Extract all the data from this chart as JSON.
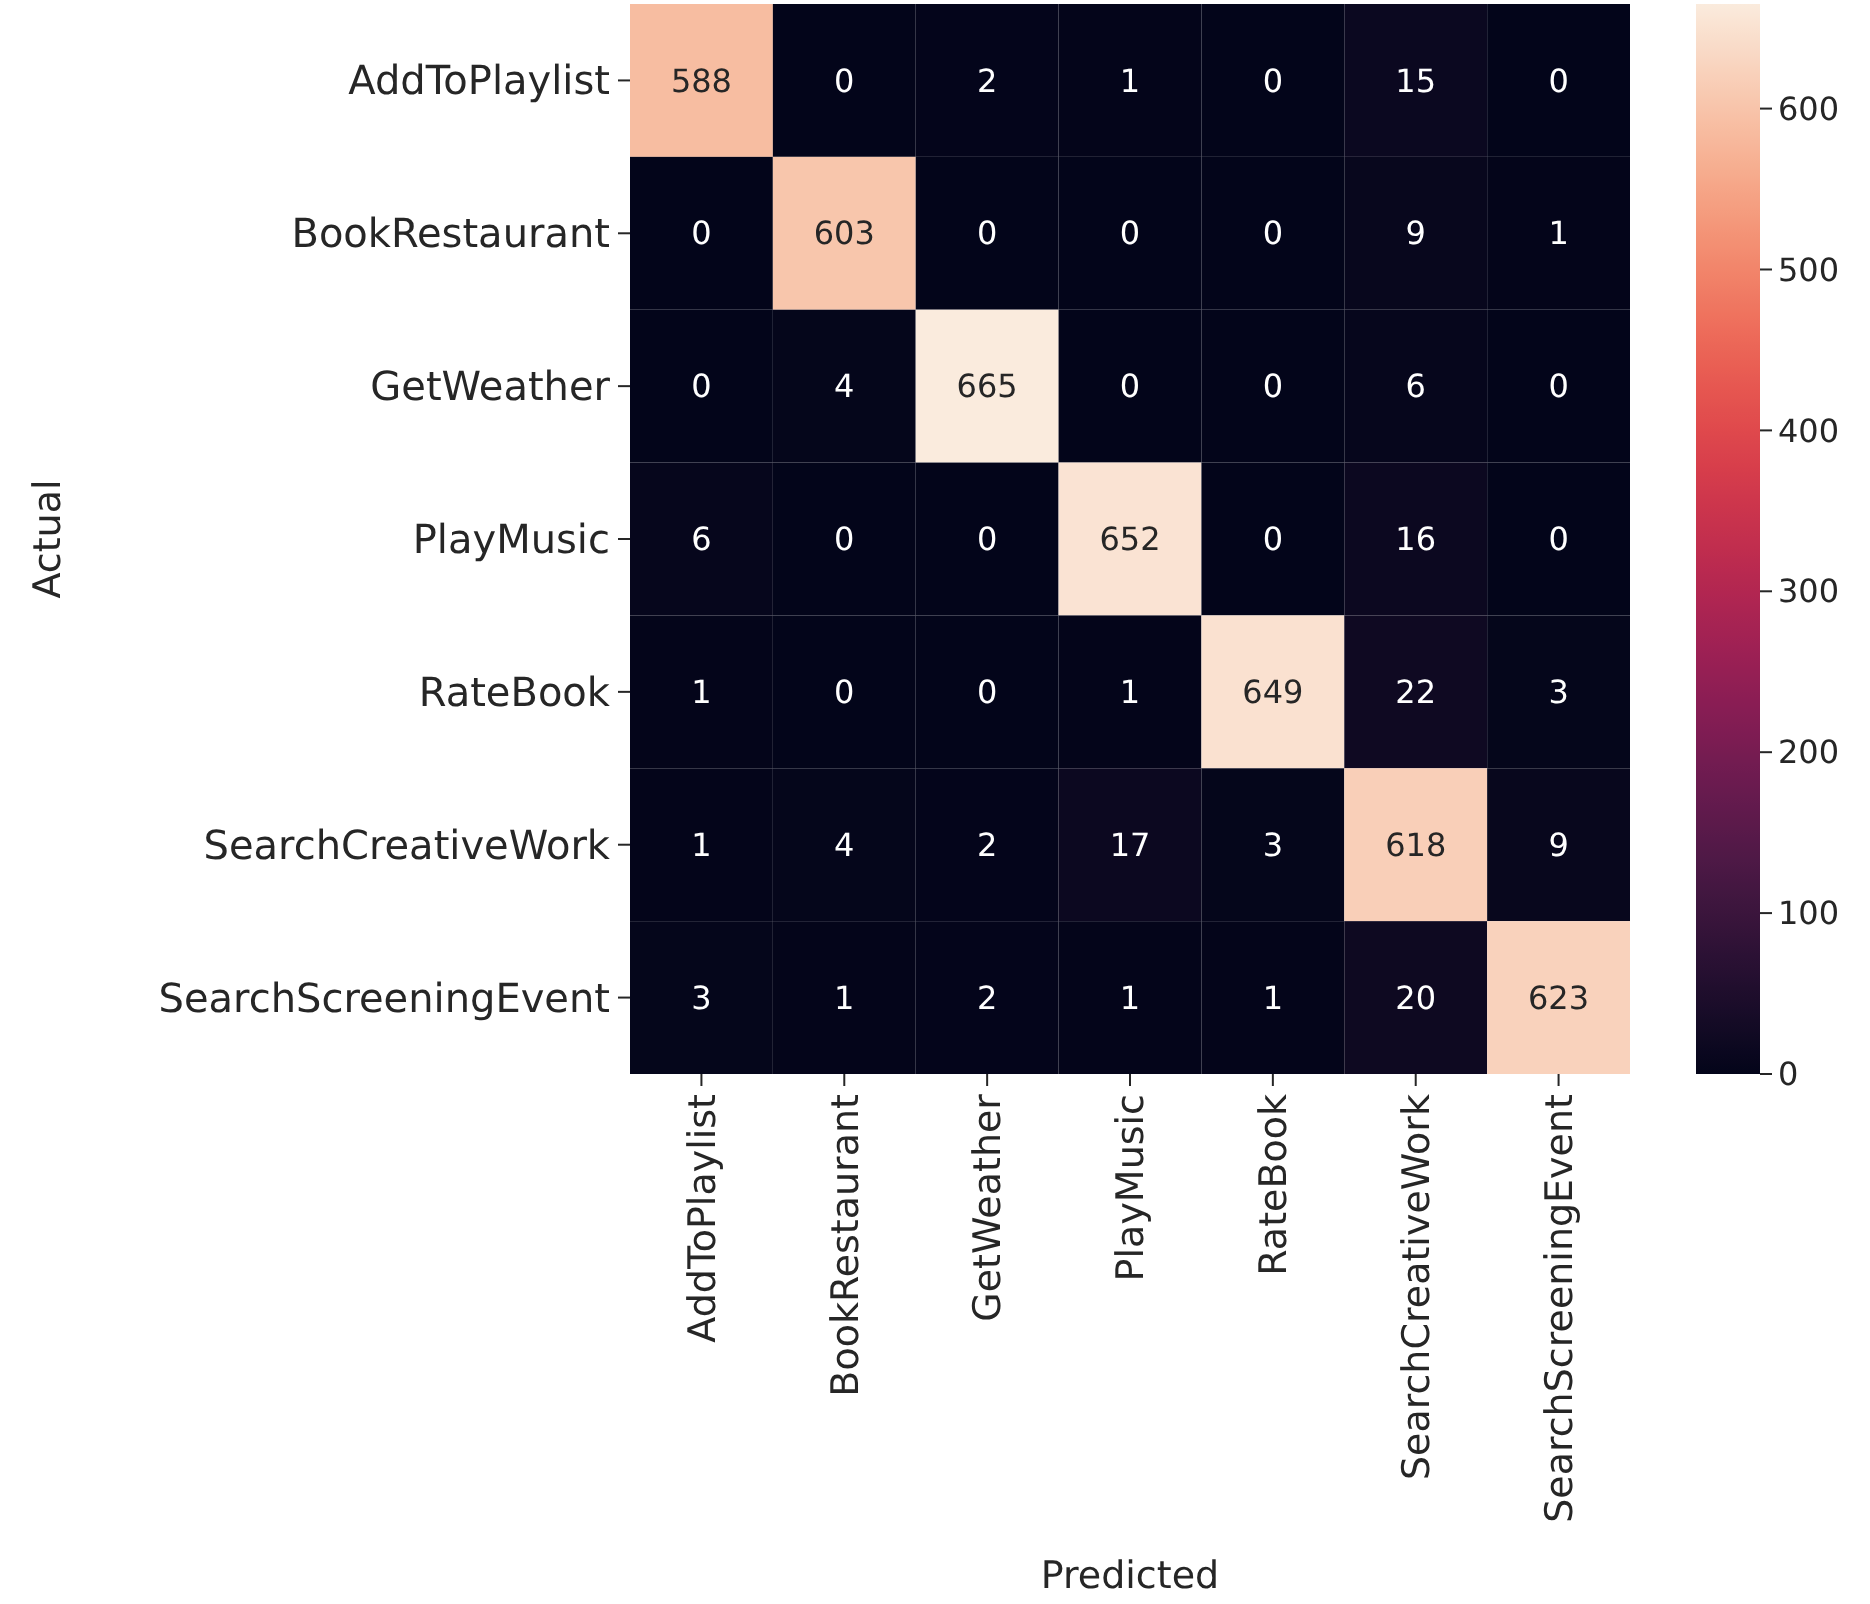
{
  "chart_data": {
    "type": "heatmap",
    "xlabel": "Predicted",
    "ylabel": "Actual",
    "categories": [
      "AddToPlaylist",
      "BookRestaurant",
      "GetWeather",
      "PlayMusic",
      "RateBook",
      "SearchCreativeWork",
      "SearchScreeningEvent"
    ],
    "y_categories": [
      "AddToPlaylist",
      "BookRestaurant",
      "GetWeather",
      "PlayMusic",
      "RateBook",
      "SearchCreativeWork",
      "SearchScreeningEvent"
    ],
    "cells": [
      [
        588,
        0,
        2,
        1,
        0,
        15,
        0
      ],
      [
        0,
        603,
        0,
        0,
        0,
        9,
        1
      ],
      [
        0,
        4,
        665,
        0,
        0,
        6,
        0
      ],
      [
        6,
        0,
        0,
        652,
        0,
        16,
        0
      ],
      [
        1,
        0,
        0,
        1,
        649,
        22,
        3
      ],
      [
        1,
        4,
        2,
        17,
        3,
        618,
        9
      ],
      [
        3,
        1,
        2,
        1,
        1,
        20,
        623
      ]
    ],
    "data_labels": true,
    "clim": [
      0,
      665
    ],
    "cticks": [
      0,
      100,
      200,
      300,
      400,
      500,
      600
    ]
  }
}
